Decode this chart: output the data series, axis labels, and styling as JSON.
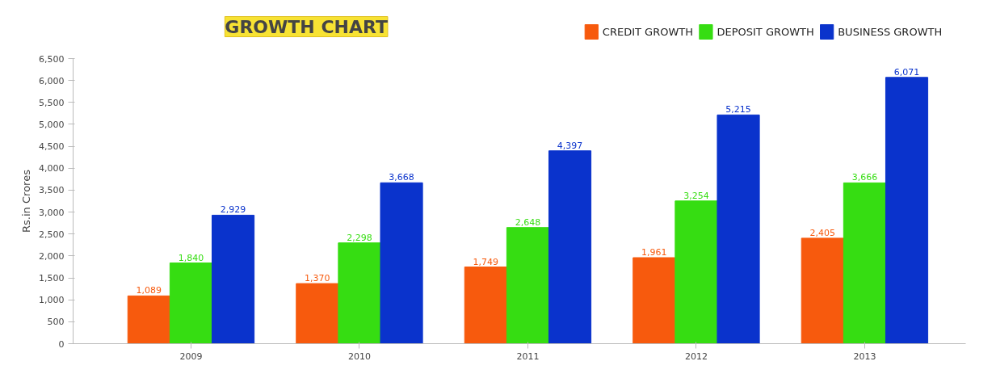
{
  "chart_data": {
    "type": "bar",
    "title": "GROWTH CHART",
    "ylabel": "Rs.in Crores",
    "categories": [
      "2009",
      "2010",
      "2011",
      "2012",
      "2013"
    ],
    "series": [
      {
        "name": "CREDIT GROWTH",
        "color": "#f75a0d",
        "values": [
          1089,
          1370,
          1749,
          1961,
          2405
        ],
        "value_labels": [
          "1,089",
          "1,370",
          "1,749",
          "1,961",
          "2,405"
        ]
      },
      {
        "name": "DEPOSIT GROWTH",
        "color": "#36dd12",
        "values": [
          1840,
          2298,
          2648,
          3254,
          3666
        ],
        "value_labels": [
          "1,840",
          "2,298",
          "2,648",
          "3,254",
          "3,666"
        ]
      },
      {
        "name": "BUSINESS GROWTH",
        "color": "#0a33cc",
        "values": [
          2929,
          3668,
          4397,
          5215,
          6071
        ],
        "value_labels": [
          "2,929",
          "3,668",
          "4,397",
          "5,215",
          "6,071"
        ]
      }
    ],
    "ylim": [
      0,
      6500
    ],
    "yticks": [
      0,
      500,
      {
        "value": 1000,
        "label": "1,000"
      },
      {
        "value": 1500,
        "label": "1,500"
      },
      {
        "value": 2000,
        "label": "2,000"
      },
      {
        "value": 2500,
        "label": "2,500"
      },
      {
        "value": 3000,
        "label": "3,000"
      },
      {
        "value": 3500,
        "label": "3,500"
      },
      {
        "value": 4000,
        "label": "4,000"
      },
      {
        "value": 4500,
        "label": "4,500"
      },
      {
        "value": 5000,
        "label": "5,000"
      },
      {
        "value": 5500,
        "label": "5,500"
      },
      {
        "value": 6000,
        "label": "6,000"
      },
      {
        "value": 6500,
        "label": "6,500"
      }
    ],
    "legend": "top right"
  }
}
